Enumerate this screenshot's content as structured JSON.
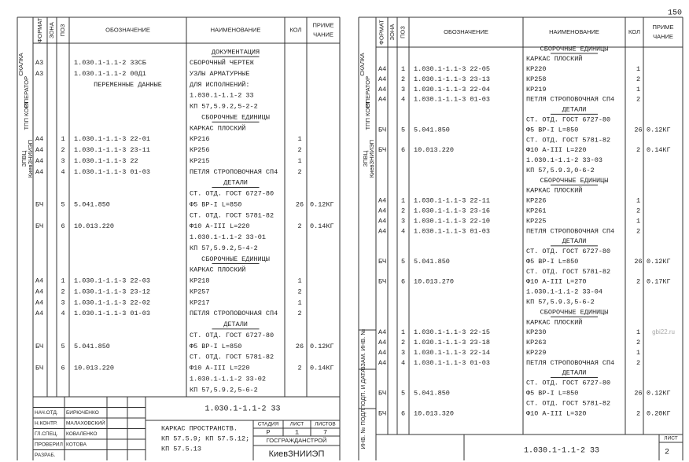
{
  "page_number": "150",
  "watermark": "gbi22.ru",
  "headers": {
    "format": "ФОРМАТ",
    "zone": "ЗОНА",
    "pos": "ПОЗ",
    "designation": "ОБОЗНАЧЕНИЕ",
    "name": "НАИМЕНОВАНИЕ",
    "qty": "КОЛ",
    "note": [
      "ПРИМЕ",
      "ЧАНИЕ"
    ]
  },
  "sheets": [
    {
      "stamp": [
        "СКАЛКА",
        "ОПЕРАТОР",
        "ТПП КОРТ",
        "ЗПВЦ",
        "КиевЗНИИЭП"
      ],
      "rows": [
        {
          "heading": "ДОКУМЕНТАЦИЯ"
        },
        {
          "f": "А3",
          "d": "1.030.1-1.1-2 33СБ",
          "n": "СБОРОЧНЫЙ ЧЕРТЕЖ"
        },
        {
          "f": "А3",
          "d": "1.030.1-1.1-2 00Д1",
          "n": "УЗЛЫ АРМАТУРНЫЕ"
        },
        {
          "d": "ПЕРЕМЕННЫЕ ДАННЫЕ",
          "n": "ДЛЯ ИСПОЛНЕНИЙ:"
        },
        {
          "n": "1.030.1-1.1-2 33"
        },
        {
          "n": "КП 57,5.9.2,5-2-2"
        },
        {
          "heading": "СБОРОЧНЫЕ ЕДИНИЦЫ"
        },
        {
          "n": "КАРКАС ПЛОСКИЙ"
        },
        {
          "f": "А4",
          "p": "1",
          "d": "1.030.1-1.1-3 22-01",
          "n": "КР216",
          "q": "1"
        },
        {
          "f": "А4",
          "p": "2",
          "d": "1.030.1-1.1-3 23-11",
          "n": "КР256",
          "q": "2"
        },
        {
          "f": "А4",
          "p": "3",
          "d": "1.030.1-1.1-3 22",
          "n": "КР215",
          "q": "1"
        },
        {
          "f": "А4",
          "p": "4",
          "d": "1.030.1-1.1-3 01-03",
          "n": "ПЕТЛЯ СТРОПОВОЧНАЯ СП4",
          "q": "2"
        },
        {
          "heading": "ДЕТАЛИ"
        },
        {
          "n": "СТ. ОТД. ГОСТ 6727-80"
        },
        {
          "f": "БЧ",
          "p": "5",
          "d": "5.041.850",
          "n": "Ф5 ВР-I L=850",
          "q": "26",
          "note": "0.12КГ"
        },
        {
          "n": "СТ. ОТД. ГОСТ 5781-82"
        },
        {
          "f": "БЧ",
          "p": "6",
          "d": "10.013.220",
          "n": "Ф10 А-III L=220",
          "q": "2",
          "note": "0.14КГ"
        },
        {
          "n": "1.030.1-1.1-2 33-01"
        },
        {
          "n": "КП 57,5.9.2,5-4-2"
        },
        {
          "heading": "СБОРОЧНЫЕ ЕДИНИЦЫ"
        },
        {
          "n": "КАРКАС ПЛОСКИЙ"
        },
        {
          "f": "А4",
          "p": "1",
          "d": "1.030.1-1.1-3 22-03",
          "n": "КР218",
          "q": "1"
        },
        {
          "f": "А4",
          "p": "2",
          "d": "1.030.1-1.1-3 23-12",
          "n": "КР257",
          "q": "2"
        },
        {
          "f": "А4",
          "p": "3",
          "d": "1.030.1-1.1-3 22-02",
          "n": "КР217",
          "q": "1"
        },
        {
          "f": "А4",
          "p": "4",
          "d": "1.030.1-1.1-3 01-03",
          "n": "ПЕТЛЯ СТРОПОВОЧНАЯ СП4",
          "q": "2"
        },
        {
          "heading": "ДЕТАЛИ"
        },
        {
          "n": "СТ. ОТД. ГОСТ 6727-80"
        },
        {
          "f": "БЧ",
          "p": "5",
          "d": "5.041.850",
          "n": "Ф5 ВР-I L=850",
          "q": "26",
          "note": "0.12КГ"
        },
        {
          "n": "СТ. ОТД. ГОСТ 5781-82"
        },
        {
          "f": "БЧ",
          "p": "6",
          "d": "10.013.220",
          "n": "Ф10 А-III L=220",
          "q": "2",
          "note": "0.14КГ"
        },
        {
          "n": "1.030.1-1.1-2 33-02"
        },
        {
          "n": "КП 57,5.9.2,5-6-2"
        }
      ],
      "title_block": {
        "designation": "1.030.1-1.1-2 33",
        "name_lines": [
          "КАРКАС ПРОСТРАНСТВ.",
          "КП 57.5.9; КП 57.5.12;",
          "КП 57.5.13"
        ],
        "stage_label": "СТАДИЯ",
        "sheet_label": "ЛИСТ",
        "sheets_label": "ЛИСТОВ",
        "stage": "Р",
        "sheet": "1",
        "sheets": "7",
        "org": "ГОСГРАЖДАНСТРОЙ",
        "institute": "КиевЗНИИЭП",
        "signatures": [
          {
            "role": "НАЧ.ОТД.",
            "name": "БИРЮЧЕНКО"
          },
          {
            "role": "Н.КОНТР.",
            "name": "МАЛАХОВСКИЙ"
          },
          {
            "role": "ГЛ.СПЕЦ.",
            "name": "КОВАЛЕНКО"
          },
          {
            "role": "ПРОВЕРИЛ",
            "name": "КОТОВА"
          },
          {
            "role": "РАЗРАБ."
          }
        ]
      }
    },
    {
      "stamp": [
        "СКАЛКА",
        "ОПЕРАТОР",
        "ТПП КОРТ",
        "ЗПВЦ",
        "КиевЗНИИЭП"
      ],
      "side_labels": [
        "ВЗАМ. ИНВ. №",
        "ПОДП. И ДАТА",
        "ИНВ. № ПОДЛ."
      ],
      "rows": [
        {
          "heading": "СБОРОЧНЫЕ ЕДИНИЦЫ"
        },
        {
          "n": "КАРКАС ПЛОСКИЙ"
        },
        {
          "f": "А4",
          "p": "1",
          "d": "1.030.1-1.1-3 22-05",
          "n": "КР220",
          "q": "1"
        },
        {
          "f": "А4",
          "p": "2",
          "d": "1.030.1-1.1-3 23-13",
          "n": "КР258",
          "q": "2"
        },
        {
          "f": "А4",
          "p": "3",
          "d": "1.030.1-1.1-3 22-04",
          "n": "КР219",
          "q": "1"
        },
        {
          "f": "А4",
          "p": "4",
          "d": "1.030.1-1.1-3 01-03",
          "n": "ПЕТЛЯ СТРОПОВОЧНАЯ СП4",
          "q": "2"
        },
        {
          "heading": "ДЕТАЛИ"
        },
        {
          "n": "СТ. ОТД. ГОСТ 6727-80"
        },
        {
          "f": "БЧ",
          "p": "5",
          "d": "5.041.850",
          "n": "Ф5 ВР-I L=850",
          "q": "26",
          "note": "0.12КГ"
        },
        {
          "n": "СТ. ОТД. ГОСТ 5781-82"
        },
        {
          "f": "БЧ",
          "p": "6",
          "d": "10.013.220",
          "n": "Ф10 А-III L=220",
          "q": "2",
          "note": "0.14КГ"
        },
        {
          "n": "1.030.1-1.1-2 33-03"
        },
        {
          "n": "КП 57,5.9.3,0-6-2"
        },
        {
          "heading": "СБОРОЧНЫЕ ЕДИНИЦЫ"
        },
        {
          "n": "КАРКАС ПЛОСКИЙ"
        },
        {
          "f": "А4",
          "p": "1",
          "d": "1.030.1-1.1-3 22-11",
          "n": "КР226",
          "q": "1"
        },
        {
          "f": "А4",
          "p": "2",
          "d": "1.030.1-1.1-3 23-16",
          "n": "КР261",
          "q": "2"
        },
        {
          "f": "А4",
          "p": "3",
          "d": "1.030.1-1.1-3 22-10",
          "n": "КР225",
          "q": "1"
        },
        {
          "f": "А4",
          "p": "4",
          "d": "1.030.1-1.1-3 01-03",
          "n": "ПЕТЛЯ СТРОПОВОЧНАЯ СП4",
          "q": "2"
        },
        {
          "heading": "ДЕТАЛИ"
        },
        {
          "n": "СТ. ОТД. ГОСТ 6727-80"
        },
        {
          "f": "БЧ",
          "p": "5",
          "d": "5.041.850",
          "n": "Ф5 ВР-I L=850",
          "q": "26",
          "note": "0.12КГ"
        },
        {
          "n": "СТ. ОТД. ГОСТ 5781-82"
        },
        {
          "f": "БЧ",
          "p": "6",
          "d": "10.013.270",
          "n": "Ф10 А-III L=270",
          "q": "2",
          "note": "0.17КГ"
        },
        {
          "n": "1.030.1-1.1-2 33-04"
        },
        {
          "n": "КП 57,5.9.3,5-6-2"
        },
        {
          "heading": "СБОРОЧНЫЕ ЕДИНИЦЫ"
        },
        {
          "n": "КАРКАС ПЛОСКИЙ"
        },
        {
          "f": "А4",
          "p": "1",
          "d": "1.030.1-1.1-3 22-15",
          "n": "КР230",
          "q": "1"
        },
        {
          "f": "А4",
          "p": "2",
          "d": "1.030.1-1.1-3 23-18",
          "n": "КР263",
          "q": "2"
        },
        {
          "f": "А4",
          "p": "3",
          "d": "1.030.1-1.1-3 22-14",
          "n": "КР229",
          "q": "1"
        },
        {
          "f": "А4",
          "p": "4",
          "d": "1.030.1-1.1-3 01-03",
          "n": "ПЕТЛЯ СТРОПОВОЧНАЯ СП4",
          "q": "2"
        },
        {
          "heading": "ДЕТАЛИ"
        },
        {
          "n": "СТ. ОТД. ГОСТ 6727-80"
        },
        {
          "f": "БЧ",
          "p": "5",
          "d": "5.041.850",
          "n": "Ф5 ВР-I L=850",
          "q": "26",
          "note": "0.12КГ"
        },
        {
          "n": "СТ. ОТД. ГОСТ 5781-82"
        },
        {
          "f": "БЧ",
          "p": "6",
          "d": "10.013.320",
          "n": "Ф10 А-III L=320",
          "q": "2",
          "note": "0.20КГ"
        }
      ],
      "footer": {
        "designation": "1.030.1-1.1-2 33",
        "sheet_label": "ЛИСТ",
        "sheet": "2"
      }
    }
  ]
}
